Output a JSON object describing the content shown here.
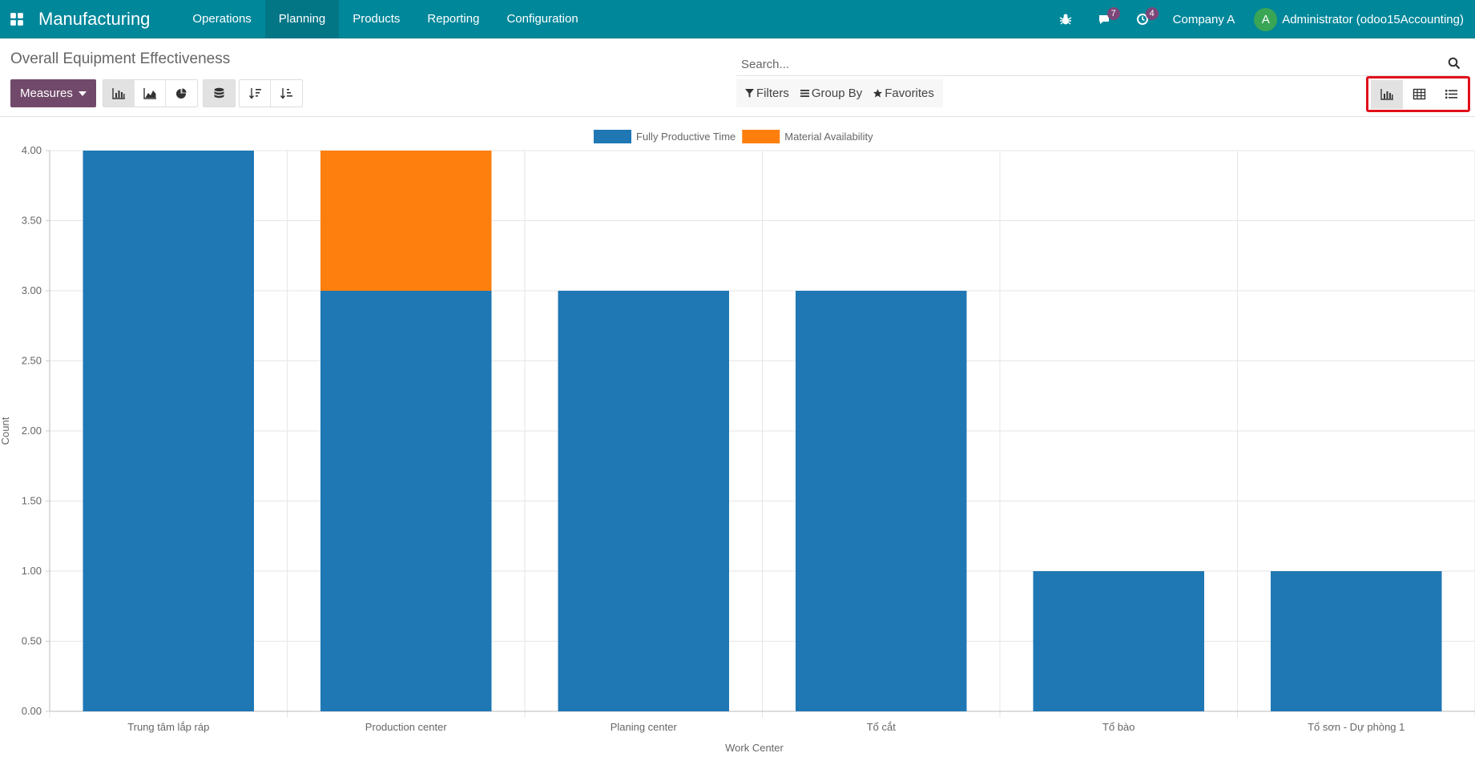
{
  "navbar": {
    "brand": "Manufacturing",
    "menu": [
      "Operations",
      "Planning",
      "Products",
      "Reporting",
      "Configuration"
    ],
    "active_menu": "Planning",
    "messages_count": "7",
    "activities_count": "4",
    "company": "Company A",
    "user_initial": "A",
    "user_name": "Administrator (odoo15Accounting)"
  },
  "control": {
    "title": "Overall Equipment Effectiveness",
    "measures_label": "Measures",
    "search_placeholder": "Search...",
    "filters_label": "Filters",
    "groupby_label": "Group By",
    "favorites_label": "Favorites"
  },
  "colors": {
    "navbar": "#00879a",
    "primary": "#71496a",
    "series1": "#1f77b4",
    "series2": "#ff7f0e",
    "highlight": "#e0101a"
  },
  "chart_data": {
    "type": "bar",
    "stacked": true,
    "categories": [
      "Trung tâm lắp ráp",
      "Production center",
      "Planing center",
      "Tổ cắt",
      "Tổ bào",
      "Tổ sơn - Dự phòng 1"
    ],
    "series": [
      {
        "name": "Fully Productive Time",
        "color": "#1f77b4",
        "values": [
          4,
          3,
          3,
          3,
          1,
          1
        ]
      },
      {
        "name": "Material Availability",
        "color": "#ff7f0e",
        "values": [
          0,
          1,
          0,
          0,
          0,
          0
        ]
      }
    ],
    "xlabel": "Work Center",
    "ylabel": "Count",
    "ylim": [
      0,
      4
    ],
    "yticks": [
      "0.00",
      "0.50",
      "1.00",
      "1.50",
      "2.00",
      "2.50",
      "3.00",
      "3.50",
      "4.00"
    ],
    "legend_position": "top-center",
    "grid": true
  }
}
